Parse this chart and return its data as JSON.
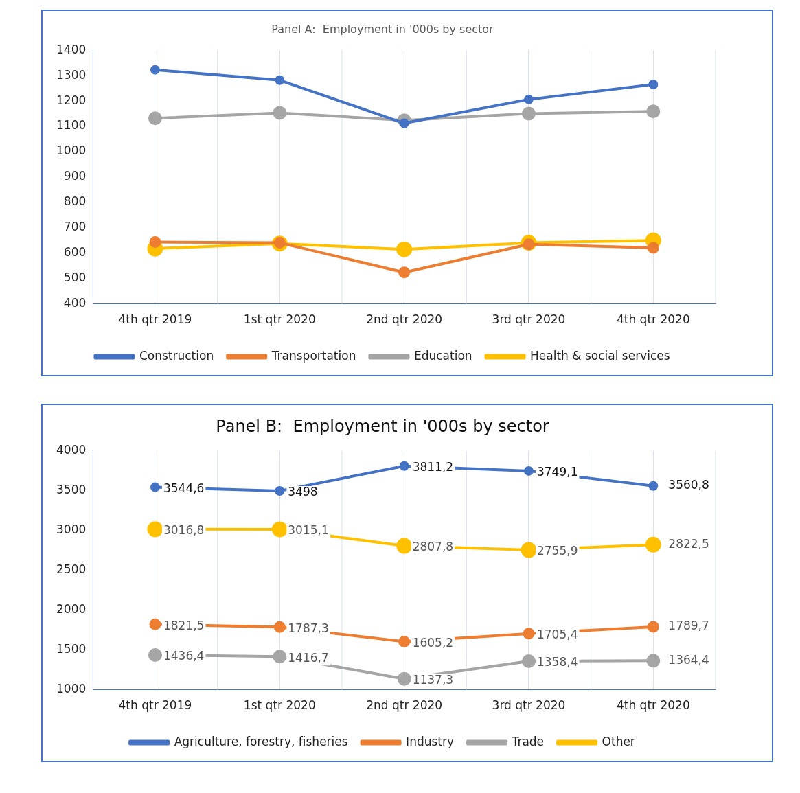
{
  "chart_data": [
    {
      "type": "line",
      "title": "Panel A:  Employment in '000s by sector",
      "categories": [
        "4th qtr 2019",
        "1st qtr 2020",
        "2nd qtr 2020",
        "3rd qtr 2020",
        "4th qtr 2020"
      ],
      "series": [
        {
          "name": "Construction",
          "color": "#4472c4",
          "values": [
            1323,
            1282,
            1112,
            1206,
            1265
          ]
        },
        {
          "name": "Transportation",
          "color": "#ed7d31",
          "values": [
            644,
            641,
            524,
            635,
            621
          ]
        },
        {
          "name": "Education",
          "color": "#a5a5a5",
          "values": [
            1132,
            1153,
            1124,
            1150,
            1159
          ]
        },
        {
          "name": "Health & social services",
          "color": "#ffc000",
          "values": [
            618,
            638,
            615,
            641,
            650
          ]
        }
      ],
      "ylim": [
        400,
        1400
      ],
      "yticks": [
        400,
        500,
        600,
        700,
        800,
        900,
        1000,
        1100,
        1200,
        1300,
        1400
      ],
      "grid": "x",
      "legend": "bottom",
      "marker": "circle",
      "line_style": "solid"
    },
    {
      "type": "line",
      "title": "Panel B:  Employment in '000s by sector",
      "categories": [
        "4th qtr 2019",
        "1st qtr 2020",
        "2nd qtr 2020",
        "3rd qtr 2020",
        "4th qtr 2020"
      ],
      "series": [
        {
          "name": "Agriculture, forestry, fisheries",
          "color": "#4472c4",
          "values": [
            3544.6,
            3498,
            3811.2,
            3749.1,
            3560.8
          ],
          "value_labels": [
            "3544,6",
            "3498",
            "3811,2",
            "3749,1",
            "3560,8"
          ]
        },
        {
          "name": "Industry",
          "color": "#ed7d31",
          "values": [
            1821.5,
            1787.3,
            1605.2,
            1705.4,
            1789.7
          ],
          "value_labels": [
            "1821,5",
            "1787,3",
            "1605,2",
            "1705,4",
            "1789,7"
          ]
        },
        {
          "name": "Trade",
          "color": "#a5a5a5",
          "values": [
            1436.4,
            1416.7,
            1137.3,
            1358.4,
            1364.4
          ],
          "value_labels": [
            "1436,4",
            "1416,7",
            "1137,3",
            "1358,4",
            "1364,4"
          ]
        },
        {
          "name": "Other",
          "color": "#ffc000",
          "values": [
            3016.8,
            3015.1,
            2807.8,
            2755.9,
            2822.5
          ],
          "value_labels": [
            "3016,8",
            "3015,1",
            "2807,8",
            "2755,9",
            "2822,5"
          ]
        }
      ],
      "ylim": [
        1000,
        4000
      ],
      "yticks": [
        1000,
        1500,
        2000,
        2500,
        3000,
        3500,
        4000
      ],
      "grid": "x",
      "legend": "bottom",
      "marker": "circle",
      "line_style": "solid"
    }
  ]
}
